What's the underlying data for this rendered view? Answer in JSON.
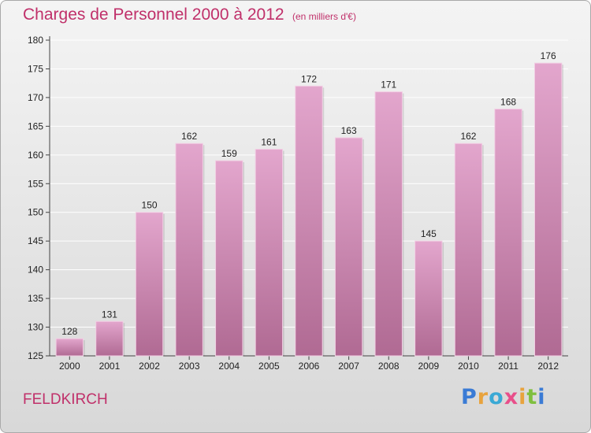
{
  "title": "Charges de Personnel 2000 à 2012",
  "unit_note": "(en milliers d'€)",
  "location": "FELDKIRCH",
  "logo": {
    "text": "Proxiti",
    "letters": [
      {
        "char": "P",
        "color": "#3a7bd5"
      },
      {
        "char": "r",
        "color": "#e8a33d"
      },
      {
        "char": "o",
        "color": "#3aa9d5"
      },
      {
        "char": "x",
        "color": "#e84f8a"
      },
      {
        "char": "i",
        "color": "#e8a33d"
      },
      {
        "char": "t",
        "color": "#7fbf3f"
      },
      {
        "char": "i",
        "color": "#3a7bd5"
      }
    ]
  },
  "colors": {
    "title": "#c0306a",
    "bar_top": "#e3a6cd",
    "bar_bottom": "#b06a93",
    "bar_edge": "#f2cfe4",
    "grid": "#ffffff"
  },
  "chart_data": {
    "type": "bar",
    "categories": [
      "2000",
      "2001",
      "2002",
      "2003",
      "2004",
      "2005",
      "2006",
      "2007",
      "2008",
      "2009",
      "2010",
      "2011",
      "2012"
    ],
    "values": [
      128,
      131,
      150,
      162,
      159,
      161,
      172,
      163,
      171,
      145,
      162,
      168,
      176
    ],
    "ylim": [
      125,
      180
    ],
    "yticks": [
      125,
      130,
      135,
      140,
      145,
      150,
      155,
      160,
      165,
      170,
      175,
      180
    ],
    "grid": true,
    "data_labels": true
  }
}
